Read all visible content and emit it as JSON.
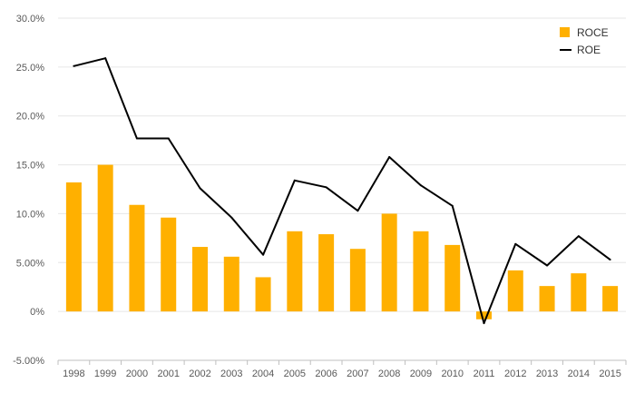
{
  "chart_data": {
    "type": "bar",
    "categories": [
      "1998",
      "1999",
      "2000",
      "2001",
      "2002",
      "2003",
      "2004",
      "2005",
      "2006",
      "2007",
      "2008",
      "2009",
      "2010",
      "2011",
      "2012",
      "2013",
      "2014",
      "2015"
    ],
    "series": [
      {
        "name": "ROCE",
        "kind": "bar",
        "color": "#FFB000",
        "values": [
          13.2,
          15.0,
          10.9,
          9.6,
          6.6,
          5.6,
          3.5,
          8.2,
          7.9,
          6.4,
          10.0,
          8.2,
          6.8,
          -0.8,
          4.2,
          2.6,
          3.9,
          2.6
        ]
      },
      {
        "name": "ROE",
        "kind": "line",
        "color": "#000000",
        "values": [
          25.1,
          25.9,
          17.7,
          17.7,
          12.6,
          9.6,
          5.8,
          13.4,
          12.7,
          10.3,
          15.8,
          12.9,
          10.8,
          -1.2,
          6.9,
          4.7,
          7.7,
          5.3
        ]
      }
    ],
    "y_ticks": [
      "30.0%",
      "25.0%",
      "20.0%",
      "15.0%",
      "10.0%",
      "5.00%",
      "0%",
      "-5.00%"
    ],
    "y_tick_values": [
      30,
      25,
      20,
      15,
      10,
      5,
      0,
      -5
    ],
    "ylim": [
      -5,
      30
    ],
    "grid": true,
    "legend": "top-right",
    "colors": {
      "gridline": "#E6E6E6",
      "axis": "#BFBFBF"
    }
  }
}
